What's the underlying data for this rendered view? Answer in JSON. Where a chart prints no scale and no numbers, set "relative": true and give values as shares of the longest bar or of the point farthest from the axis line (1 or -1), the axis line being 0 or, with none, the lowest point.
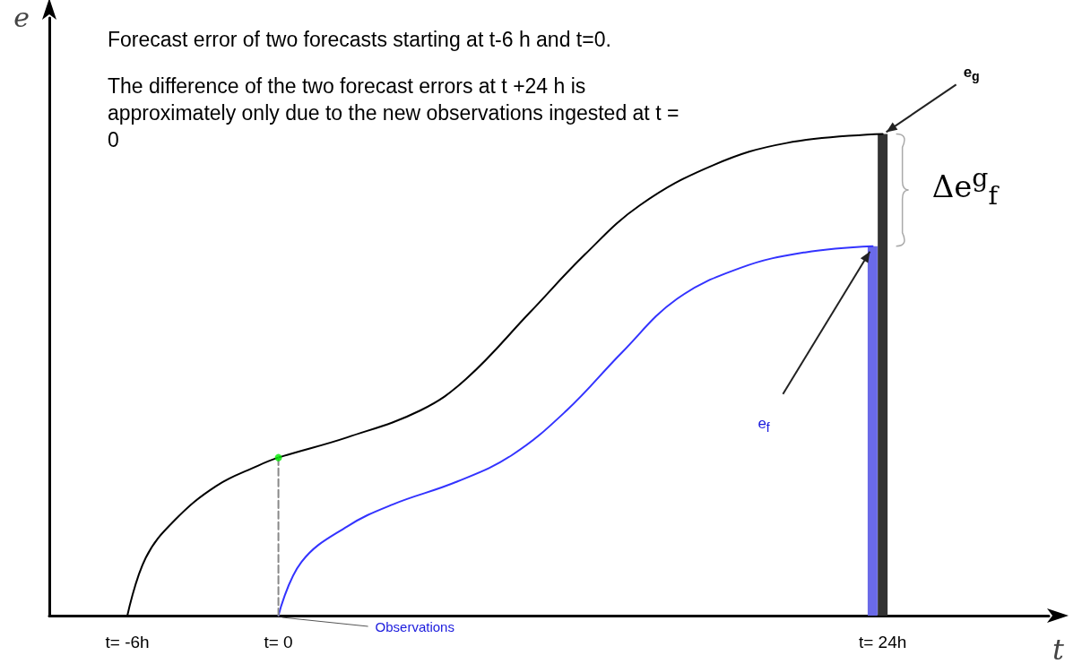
{
  "chart_data": {
    "type": "line",
    "relative": true,
    "xlabel": "t",
    "ylabel": "e",
    "xlim": [
      -9.1,
      30.6
    ],
    "xticks": [
      {
        "value": -6,
        "label": "t= -6h"
      },
      {
        "value": 0,
        "label": "t= 0"
      },
      {
        "value": 24,
        "label": "t= 24h"
      }
    ],
    "marker": "none",
    "grid": false,
    "series": [
      {
        "type": "bar",
        "color": "#333333",
        "x": [
          24
        ],
        "values": [
          1.0
        ]
      },
      {
        "type": "bar",
        "color": "#6a6ae8",
        "x": [
          23.6
        ],
        "values": [
          0.767
        ]
      },
      {
        "color": "#000000",
        "x": [
          -6,
          -5.27,
          -4.12,
          -2.47,
          -0.82,
          0,
          2.73,
          5.64,
          7.45,
          10,
          12.18,
          14.36,
          17.27,
          20.18,
          24
        ],
        "values": [
          0,
          0.12,
          0.198,
          0.269,
          0.311,
          0.328,
          0.37,
          0.426,
          0.491,
          0.63,
          0.75,
          0.852,
          0.935,
          0.981,
          1.0
        ]
      },
      {
        "color": "#3333ff",
        "x": [
          0,
          0.91,
          2.73,
          4.55,
          7.09,
          9.27,
          11.45,
          13.64,
          15.82,
          18.36,
          20.91,
          23.6
        ],
        "values": [
          0,
          0.111,
          0.185,
          0.231,
          0.278,
          0.333,
          0.426,
          0.546,
          0.657,
          0.722,
          0.754,
          0.767
        ]
      },
      {
        "color": "#888888",
        "line_style": "dashed",
        "x": [
          0,
          0
        ],
        "values": [
          0,
          0.328
        ]
      },
      {
        "type": "scatter",
        "color": "#00ee00",
        "marker": "circle",
        "x": [
          0
        ],
        "values": [
          0.328
        ]
      }
    ],
    "annotations": [
      "Forecast error of two forecasts starting at t-6 h and t=0.",
      "The difference of the two forecast errors at t +24 h is approximately only due to the new observations ingested at t = 0",
      {
        "text": "e$_{g}$",
        "x": 24,
        "y": 1.0
      },
      "e$_{f}$",
      "Δe$^{g}$$_{f}$",
      {
        "text": "Observations",
        "x": 0,
        "y": 0
      }
    ]
  }
}
